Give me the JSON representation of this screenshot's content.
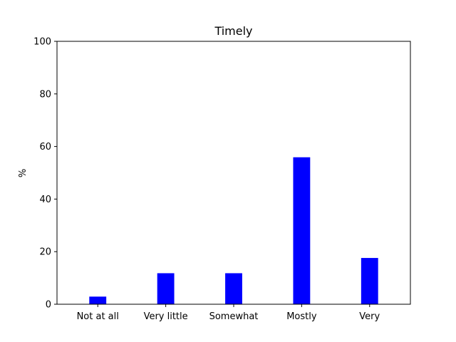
{
  "chart_data": {
    "type": "bar",
    "title": "Timely",
    "xlabel": "",
    "ylabel": "%",
    "categories": [
      "Not at all",
      "Very little",
      "Somewhat",
      "Mostly",
      "Very"
    ],
    "values": [
      2.9,
      11.8,
      11.8,
      55.9,
      17.6
    ],
    "ylim": [
      0,
      100
    ],
    "yticks": [
      0,
      20,
      40,
      60,
      80,
      100
    ],
    "bar_color": "#0000ff",
    "grid": false,
    "legend": "none"
  }
}
